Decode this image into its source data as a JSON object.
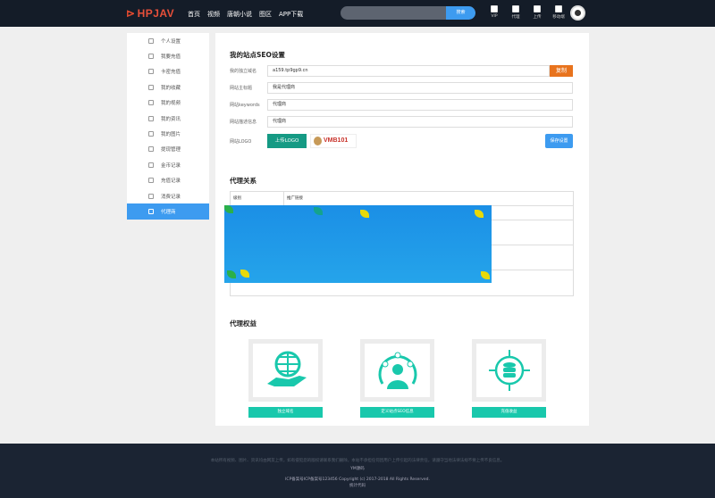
{
  "header": {
    "logo": "HPJAV",
    "nav": [
      "首页",
      "视频",
      "唐朝小说",
      "图区",
      "APP下载"
    ],
    "search": {
      "placeholder": "",
      "button": "搜索"
    },
    "tools": [
      {
        "label": "VIP",
        "icon": "vip-icon"
      },
      {
        "label": "代理",
        "icon": "agent-icon"
      },
      {
        "label": "上传",
        "icon": "upload-icon"
      },
      {
        "label": "移动端",
        "icon": "qrcode-icon"
      }
    ]
  },
  "sidebar": {
    "items": [
      {
        "label": "个人设置"
      },
      {
        "label": "我要充值"
      },
      {
        "label": "卡密充值"
      },
      {
        "label": "我的收藏"
      },
      {
        "label": "我的视频"
      },
      {
        "label": "我的资讯"
      },
      {
        "label": "我的图片"
      },
      {
        "label": "提现管理"
      },
      {
        "label": "金币记录"
      },
      {
        "label": "充值记录"
      },
      {
        "label": "消费记录"
      },
      {
        "label": "代理商",
        "active": true
      }
    ]
  },
  "seo": {
    "title": "我的站点SEO设置",
    "fields": [
      {
        "label": "我的独立域名",
        "value": "a159.tp9gp9.cn"
      },
      {
        "label": "网站主标题",
        "value": "我是代理商"
      },
      {
        "label": "网站keywords",
        "value": "代理商"
      },
      {
        "label": "网站描述信息",
        "value": "代理商"
      }
    ],
    "copy": "复制",
    "logo_label": "网站LOGO",
    "upload": "上传LOGO",
    "logo_text": "VMB101",
    "save": "保存设置"
  },
  "relation": {
    "title": "代理关系",
    "headers": [
      "级别",
      "推广链接"
    ]
  },
  "benefits": {
    "title": "代理权益",
    "items": [
      {
        "label": "独立域名"
      },
      {
        "label": "定义站点SEO信息"
      },
      {
        "label": "充值收益"
      }
    ],
    "color": "#19c8ac"
  },
  "footer": {
    "notice": "本站所有视频、图片、资讯均由网友上传，如有侵犯您的版权请联系我们删除，本站不承担任何因用户上传引起的法律责任，请遵守当地法律法规不要上传不良信息。",
    "source": "YM源码",
    "icp": "ICP备案号ICP备案号123456   Copyright (c) 2017-2018 All Rights Reserved.",
    "stats": "统计代码"
  }
}
